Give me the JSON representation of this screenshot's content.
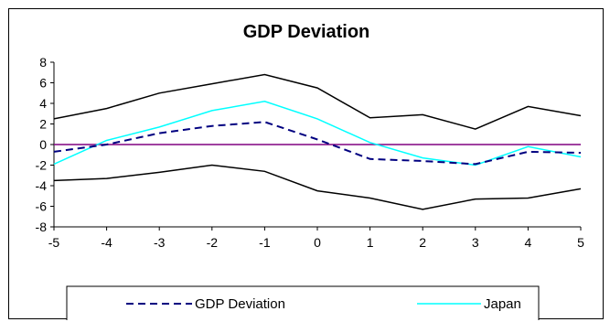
{
  "chart_data": {
    "type": "line",
    "title": "GDP Deviation",
    "x": [
      -5,
      -4,
      -3,
      -2,
      -1,
      0,
      1,
      2,
      3,
      4,
      5
    ],
    "x_tick_labels": [
      "-5",
      "-4",
      "-3",
      "-2",
      "-1",
      "0",
      "1",
      "2",
      "3",
      "4",
      "5"
    ],
    "y_tick_labels": [
      "8",
      "6",
      "4",
      "2",
      "0",
      "-2",
      "-4",
      "-6",
      "-8"
    ],
    "ylim": [
      -8,
      8
    ],
    "grid": false,
    "legend_position": "bottom",
    "series": [
      {
        "key": "upper",
        "values": [
          2.5,
          3.5,
          5.0,
          5.9,
          6.8,
          5.5,
          2.6,
          2.9,
          1.5,
          3.7,
          2.8
        ],
        "color": "#000000",
        "style": "solid"
      },
      {
        "key": "lower",
        "values": [
          -3.5,
          -3.3,
          -2.7,
          -2.0,
          -2.6,
          -4.5,
          -5.2,
          -6.3,
          -5.3,
          -5.2,
          -4.3
        ],
        "color": "#000000",
        "style": "solid"
      },
      {
        "key": "zero",
        "values": [
          0,
          0,
          0,
          0,
          0,
          0,
          0,
          0,
          0,
          0,
          0
        ],
        "color": "#800080",
        "style": "solid"
      },
      {
        "key": "japan",
        "name": "Japan",
        "values": [
          -1.9,
          0.4,
          1.7,
          3.3,
          4.2,
          2.5,
          0.2,
          -1.3,
          -2.0,
          -0.2,
          -1.2
        ],
        "color": "#00FFFF",
        "style": "solid"
      },
      {
        "key": "gdp",
        "name": "GDP Deviation",
        "values": [
          -0.7,
          0.0,
          1.1,
          1.8,
          2.2,
          0.5,
          -1.4,
          -1.6,
          -1.9,
          -0.7,
          -0.8
        ],
        "color": "#000080",
        "style": "dashed"
      }
    ],
    "legend": [
      {
        "series": "gdp",
        "label": "GDP Deviation"
      },
      {
        "series": "japan",
        "label": "Japan"
      }
    ]
  }
}
